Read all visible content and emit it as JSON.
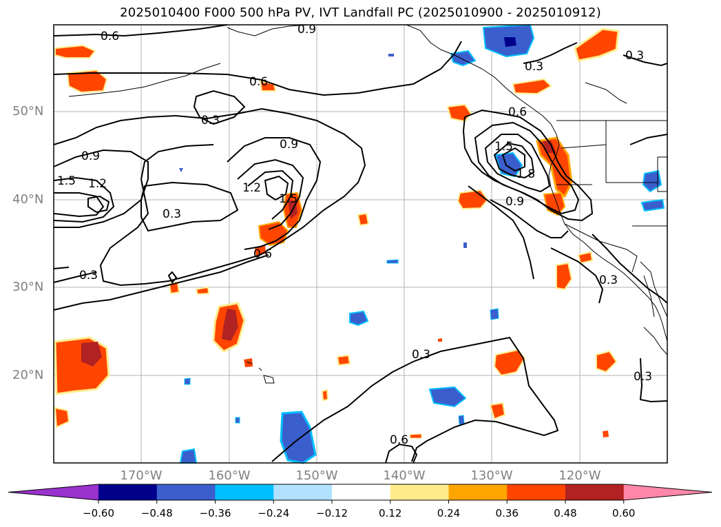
{
  "title": "2025010400 F000 500 hPa PV, IVT Landfall PC (2025010900 - 2025010912)",
  "lat_labels": [
    "50°N",
    "40°N",
    "30°N",
    "20°N"
  ],
  "lon_labels": [
    "170°W",
    "160°W",
    "150°W",
    "140°W",
    "130°W",
    "120°W"
  ],
  "colorbar": {
    "ticks": [
      "−0.60",
      "−0.48",
      "−0.36",
      "−0.24",
      "−0.12",
      "0.12",
      "0.24",
      "0.36",
      "0.48",
      "0.60"
    ],
    "colors": [
      "#9932cc",
      "#00008b",
      "#3a5fcd",
      "#00bfff",
      "#b0e2ff",
      "#ffffff",
      "#ffec8b",
      "#ffa500",
      "#ff4500",
      "#b22222",
      "#ff88aa"
    ]
  },
  "contour_labels": {
    "c_06_nw": "0.6",
    "c_09_n": "0.9",
    "c_06_mid": "0.6",
    "c_03_a": "0.3",
    "c_09_b": "0.9",
    "c_09_w": "0.9",
    "c_15_w": "1.5",
    "c_12_w": "1.2",
    "c_03_c": "0.3",
    "c_12_c": "1.2",
    "c_15_c": "1.5",
    "c_06_c": "0.6",
    "c_03_sw": "0.3",
    "c_15_e": "1.5",
    "c_18_e": "1.8",
    "c_09_e": "0.9",
    "c_06_e": "0.6",
    "c_03_ne": "0.3",
    "c_03_nne": "0.3",
    "c_03_s": "0.3",
    "c_03_se": "0.3",
    "c_03_far": "0.3",
    "c_06_bot": "0.6"
  }
}
